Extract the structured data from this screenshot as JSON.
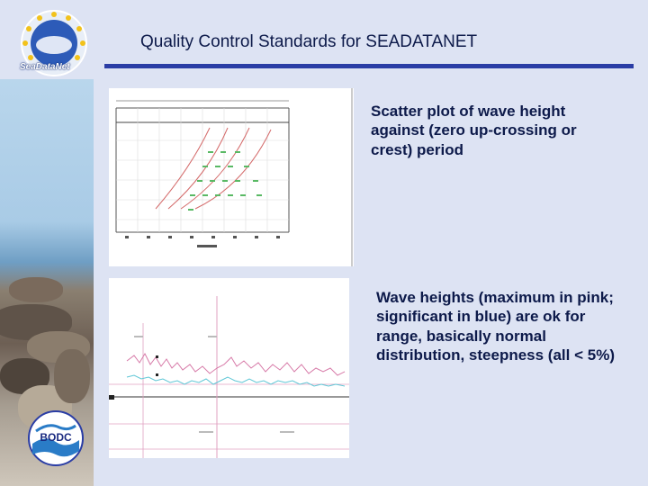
{
  "slide": {
    "title": "Quality Control Standards for SEADATANET",
    "logo_text": "SeaDataNet",
    "bottom_logo_text": "BODC",
    "caption_1": "Scatter plot of wave height against (zero up-crossing or crest) period",
    "caption_2": "Wave heights (maximum in pink; significant in blue) are ok for range, basically normal distribution, steepness (all < 5%)"
  },
  "colors": {
    "background": "#dde3f3",
    "title_rule": "#2a3da5",
    "title_text": "#0d1a4a",
    "max_wave_pink": "#d77aa8",
    "sig_wave_blue": "#5fc7d6",
    "scatter_green": "#59b964",
    "curve_red": "#d46a6a"
  },
  "icons": {
    "top_logo": "seadatanet-logo",
    "bottom_logo": "bodc-logo"
  }
}
